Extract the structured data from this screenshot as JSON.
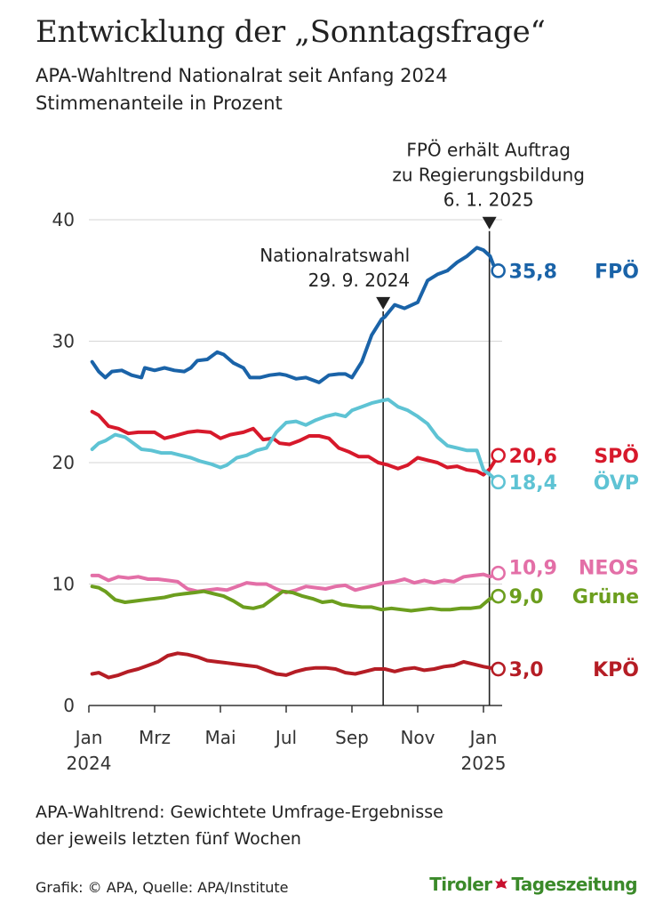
{
  "chart_data": {
    "type": "line",
    "title": "Entwicklung der „Sonntagsfrage“",
    "subtitle_lines": [
      "APA-Wahltrend Nationalrat seit Anfang 2024",
      "Stimmenanteile in Prozent"
    ],
    "ylim": [
      0,
      40
    ],
    "yticks": [
      "0",
      "10",
      "20",
      "30",
      "40"
    ],
    "xticks": [
      {
        "label": "Jan",
        "label2": "2024",
        "month": 0
      },
      {
        "label": "Mrz",
        "label2": "",
        "month": 2
      },
      {
        "label": "Mai",
        "label2": "",
        "month": 4
      },
      {
        "label": "Jul",
        "label2": "",
        "month": 6
      },
      {
        "label": "Sep",
        "label2": "",
        "month": 8
      },
      {
        "label": "Nov",
        "label2": "",
        "month": 10
      },
      {
        "label": "Jan",
        "label2": "2025",
        "month": 12
      }
    ],
    "annotations": [
      {
        "lines": [
          "Nationalratswahl",
          "29. 9. 2024"
        ],
        "month": 8.95
      },
      {
        "lines": [
          "FPÖ erhält Auftrag",
          "zu Regierungsbildung",
          "6. 1. 2025"
        ],
        "month": 12.18
      }
    ],
    "series": [
      {
        "name": "FPÖ",
        "end_label": "35,8",
        "color": "#1a63a8",
        "x": [
          0.1,
          0.3,
          0.5,
          0.7,
          1.0,
          1.3,
          1.6,
          1.7,
          2.0,
          2.3,
          2.6,
          2.9,
          3.1,
          3.3,
          3.6,
          3.9,
          4.1,
          4.4,
          4.7,
          4.9,
          5.2,
          5.5,
          5.8,
          6.0,
          6.3,
          6.6,
          7.0,
          7.3,
          7.6,
          7.8,
          8.0,
          8.3,
          8.6,
          8.9,
          9.0,
          9.3,
          9.6,
          10.0,
          10.3,
          10.6,
          10.9,
          11.2,
          11.5,
          11.8,
          12.0,
          12.2,
          12.3,
          12.45
        ],
        "y": [
          28.3,
          27.5,
          27.0,
          27.5,
          27.6,
          27.2,
          27.0,
          27.8,
          27.6,
          27.8,
          27.6,
          27.5,
          27.8,
          28.4,
          28.5,
          29.1,
          28.9,
          28.2,
          27.8,
          27.0,
          27.0,
          27.2,
          27.3,
          27.2,
          26.9,
          27.0,
          26.6,
          27.2,
          27.3,
          27.3,
          27.0,
          28.3,
          30.5,
          31.8,
          32.0,
          33.0,
          32.7,
          33.2,
          35.0,
          35.5,
          35.8,
          36.5,
          37.0,
          37.7,
          37.5,
          37.0,
          36.3,
          35.8
        ]
      },
      {
        "name": "SPÖ",
        "end_label": "20,6",
        "color": "#d7192b",
        "x": [
          0.1,
          0.3,
          0.6,
          0.9,
          1.2,
          1.5,
          1.8,
          2.0,
          2.3,
          2.6,
          3.0,
          3.3,
          3.7,
          4.0,
          4.3,
          4.7,
          5.0,
          5.3,
          5.6,
          5.8,
          6.1,
          6.4,
          6.7,
          7.0,
          7.3,
          7.6,
          7.9,
          8.2,
          8.5,
          8.8,
          9.1,
          9.4,
          9.7,
          10.0,
          10.3,
          10.6,
          10.9,
          11.2,
          11.5,
          11.8,
          12.0,
          12.2,
          12.45
        ],
        "y": [
          24.2,
          23.9,
          23.0,
          22.8,
          22.4,
          22.5,
          22.5,
          22.5,
          22.0,
          22.2,
          22.5,
          22.6,
          22.5,
          22.0,
          22.3,
          22.5,
          22.8,
          21.9,
          22.0,
          21.6,
          21.5,
          21.8,
          22.2,
          22.2,
          22.0,
          21.2,
          20.9,
          20.5,
          20.5,
          20.0,
          19.8,
          19.5,
          19.8,
          20.4,
          20.2,
          20.0,
          19.6,
          19.7,
          19.4,
          19.3,
          19.0,
          19.5,
          20.6
        ]
      },
      {
        "name": "ÖVP",
        "end_label": "18,4",
        "color": "#5ec3d4",
        "x": [
          0.1,
          0.3,
          0.5,
          0.8,
          1.1,
          1.4,
          1.6,
          1.9,
          2.2,
          2.5,
          2.8,
          3.1,
          3.4,
          3.7,
          4.0,
          4.2,
          4.5,
          4.8,
          5.1,
          5.4,
          5.7,
          6.0,
          6.3,
          6.6,
          6.9,
          7.2,
          7.5,
          7.8,
          8.0,
          8.3,
          8.6,
          8.9,
          9.1,
          9.4,
          9.7,
          10.0,
          10.3,
          10.6,
          10.9,
          11.2,
          11.5,
          11.8,
          12.0,
          12.2,
          12.45
        ],
        "y": [
          21.1,
          21.6,
          21.8,
          22.3,
          22.1,
          21.5,
          21.1,
          21.0,
          20.8,
          20.8,
          20.6,
          20.4,
          20.1,
          19.9,
          19.6,
          19.8,
          20.4,
          20.6,
          21.0,
          21.2,
          22.5,
          23.3,
          23.4,
          23.1,
          23.5,
          23.8,
          24.0,
          23.8,
          24.3,
          24.6,
          24.9,
          25.1,
          25.2,
          24.6,
          24.3,
          23.8,
          23.2,
          22.1,
          21.4,
          21.2,
          21.0,
          21.0,
          19.4,
          19.0,
          18.4
        ]
      },
      {
        "name": "NEOS",
        "end_label": "10,9",
        "color": "#e36fa7",
        "x": [
          0.1,
          0.3,
          0.6,
          0.9,
          1.2,
          1.5,
          1.8,
          2.1,
          2.4,
          2.7,
          3.0,
          3.3,
          3.6,
          3.9,
          4.2,
          4.5,
          4.8,
          5.1,
          5.4,
          5.7,
          6.0,
          6.3,
          6.6,
          6.9,
          7.2,
          7.5,
          7.8,
          8.1,
          8.4,
          8.7,
          9.0,
          9.3,
          9.6,
          9.9,
          10.2,
          10.5,
          10.8,
          11.1,
          11.4,
          11.7,
          12.0,
          12.2,
          12.45
        ],
        "y": [
          10.7,
          10.7,
          10.3,
          10.6,
          10.5,
          10.6,
          10.4,
          10.4,
          10.3,
          10.2,
          9.6,
          9.4,
          9.5,
          9.6,
          9.5,
          9.8,
          10.1,
          10.0,
          10.0,
          9.6,
          9.3,
          9.5,
          9.8,
          9.7,
          9.6,
          9.8,
          9.9,
          9.5,
          9.7,
          9.9,
          10.1,
          10.2,
          10.4,
          10.1,
          10.3,
          10.1,
          10.3,
          10.2,
          10.6,
          10.7,
          10.8,
          10.6,
          10.9
        ]
      },
      {
        "name": "Grüne",
        "end_label": "9,0",
        "color": "#6c9e1e",
        "x": [
          0.1,
          0.3,
          0.5,
          0.8,
          1.1,
          1.4,
          1.7,
          2.0,
          2.3,
          2.6,
          2.9,
          3.2,
          3.5,
          3.8,
          4.1,
          4.4,
          4.7,
          5.0,
          5.3,
          5.6,
          5.9,
          6.2,
          6.5,
          6.8,
          7.1,
          7.4,
          7.7,
          8.0,
          8.3,
          8.6,
          8.9,
          9.2,
          9.5,
          9.8,
          10.1,
          10.4,
          10.7,
          11.0,
          11.3,
          11.6,
          11.9,
          12.2,
          12.45
        ],
        "y": [
          9.8,
          9.7,
          9.4,
          8.7,
          8.5,
          8.6,
          8.7,
          8.8,
          8.9,
          9.1,
          9.2,
          9.3,
          9.4,
          9.2,
          9.0,
          8.6,
          8.1,
          8.0,
          8.2,
          8.8,
          9.4,
          9.3,
          9.0,
          8.8,
          8.5,
          8.6,
          8.3,
          8.2,
          8.1,
          8.1,
          7.9,
          8.0,
          7.9,
          7.8,
          7.9,
          8.0,
          7.9,
          7.9,
          8.0,
          8.0,
          8.1,
          8.8,
          9.0
        ]
      },
      {
        "name": "KPÖ",
        "end_label": "3,0",
        "color": "#b51d25",
        "x": [
          0.1,
          0.3,
          0.6,
          0.9,
          1.2,
          1.5,
          1.8,
          2.1,
          2.4,
          2.7,
          3.0,
          3.3,
          3.6,
          3.9,
          4.2,
          4.5,
          4.8,
          5.1,
          5.4,
          5.7,
          6.0,
          6.3,
          6.6,
          6.9,
          7.2,
          7.5,
          7.8,
          8.1,
          8.4,
          8.7,
          9.0,
          9.3,
          9.6,
          9.9,
          10.2,
          10.5,
          10.8,
          11.1,
          11.4,
          11.7,
          12.0,
          12.2,
          12.45
        ],
        "y": [
          2.6,
          2.7,
          2.3,
          2.5,
          2.8,
          3.0,
          3.3,
          3.6,
          4.1,
          4.3,
          4.2,
          4.0,
          3.7,
          3.6,
          3.5,
          3.4,
          3.3,
          3.2,
          2.9,
          2.6,
          2.5,
          2.8,
          3.0,
          3.1,
          3.1,
          3.0,
          2.7,
          2.6,
          2.8,
          3.0,
          3.0,
          2.8,
          3.0,
          3.1,
          2.9,
          3.0,
          3.2,
          3.3,
          3.6,
          3.4,
          3.2,
          3.1,
          3.0
        ]
      }
    ]
  },
  "footnote_lines": [
    "APA-Wahltrend: Gewichtete Umfrage-Ergebnisse",
    "der jeweils letzten fünf Wochen"
  ],
  "credit": "Grafik: © APA, Quelle: APA/Institute",
  "logo": {
    "left": "Tiroler",
    "right": "Tageszeitung"
  }
}
